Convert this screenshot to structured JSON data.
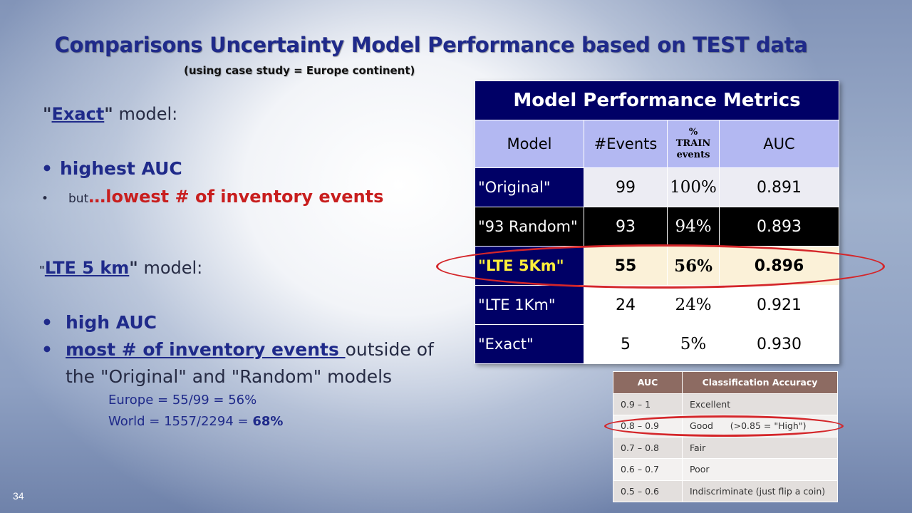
{
  "slide": {
    "title": "Comparisons Uncertainty Model Performance based on TEST data",
    "subtitle": "(using case study = Europe continent)",
    "page_number": "34"
  },
  "exact_section": {
    "quote_open": "\"",
    "name": "Exact",
    "quote_close": "\"",
    "suffix": " model:",
    "bullet1": "highest AUC",
    "bullet2_prefix": "but",
    "bullet2_red": "…lowest # of inventory events"
  },
  "lte_section": {
    "quote_open": "\"",
    "name": "LTE 5 km",
    "quote_close": "\"",
    "suffix": " model:",
    "bullet1": "high AUC",
    "bullet2_bold": "most # of inventory events ",
    "bullet2_rest": "outside of",
    "bullet2_line2": "the \"Original\"  and \"Random\" models",
    "europe": "Europe = 55/99 = 56%",
    "world_prefix": "World = 1557/2294  = ",
    "world_bold": "68%"
  },
  "metrics_table": {
    "title": "Model Performance Metrics",
    "headers": {
      "model": "Model",
      "events": "#Events",
      "pct_line1": "%",
      "pct_line2": "TRAIN",
      "pct_line3": "events",
      "auc": "AUC"
    },
    "rows": [
      {
        "model": "\"Original\"",
        "events": "99",
        "pct": "100%",
        "auc": "0.891"
      },
      {
        "model": "\"93 Random\"",
        "events": "93",
        "pct": "94%",
        "auc": "0.893"
      },
      {
        "model": "\"LTE 5Km\"",
        "events": "55",
        "pct": "56%",
        "auc": "0.896"
      },
      {
        "model": "\"LTE 1Km\"",
        "events": "24",
        "pct": "24%",
        "auc": "0.921"
      },
      {
        "model": "\"Exact\"",
        "events": "5",
        "pct": "5%",
        "auc": "0.930"
      }
    ]
  },
  "auc_table": {
    "headers": {
      "auc": "AUC",
      "accuracy": "Classification Accuracy"
    },
    "rows": [
      {
        "auc": "0.9 – 1",
        "accuracy": "Excellent"
      },
      {
        "auc": "0.8 – 0.9",
        "accuracy": "Good      (>0.85 = \"High\")"
      },
      {
        "auc": "0.7 – 0.8",
        "accuracy": "Fair"
      },
      {
        "auc": "0.6 – 0.7",
        "accuracy": "Poor"
      },
      {
        "auc": "0.5 – 0.6",
        "accuracy": "Indiscriminate (just flip a coin)"
      }
    ]
  },
  "colors": {
    "title_blue": "#1f2a8a",
    "highlight_red": "#d4262a",
    "table_navy": "#000066"
  }
}
